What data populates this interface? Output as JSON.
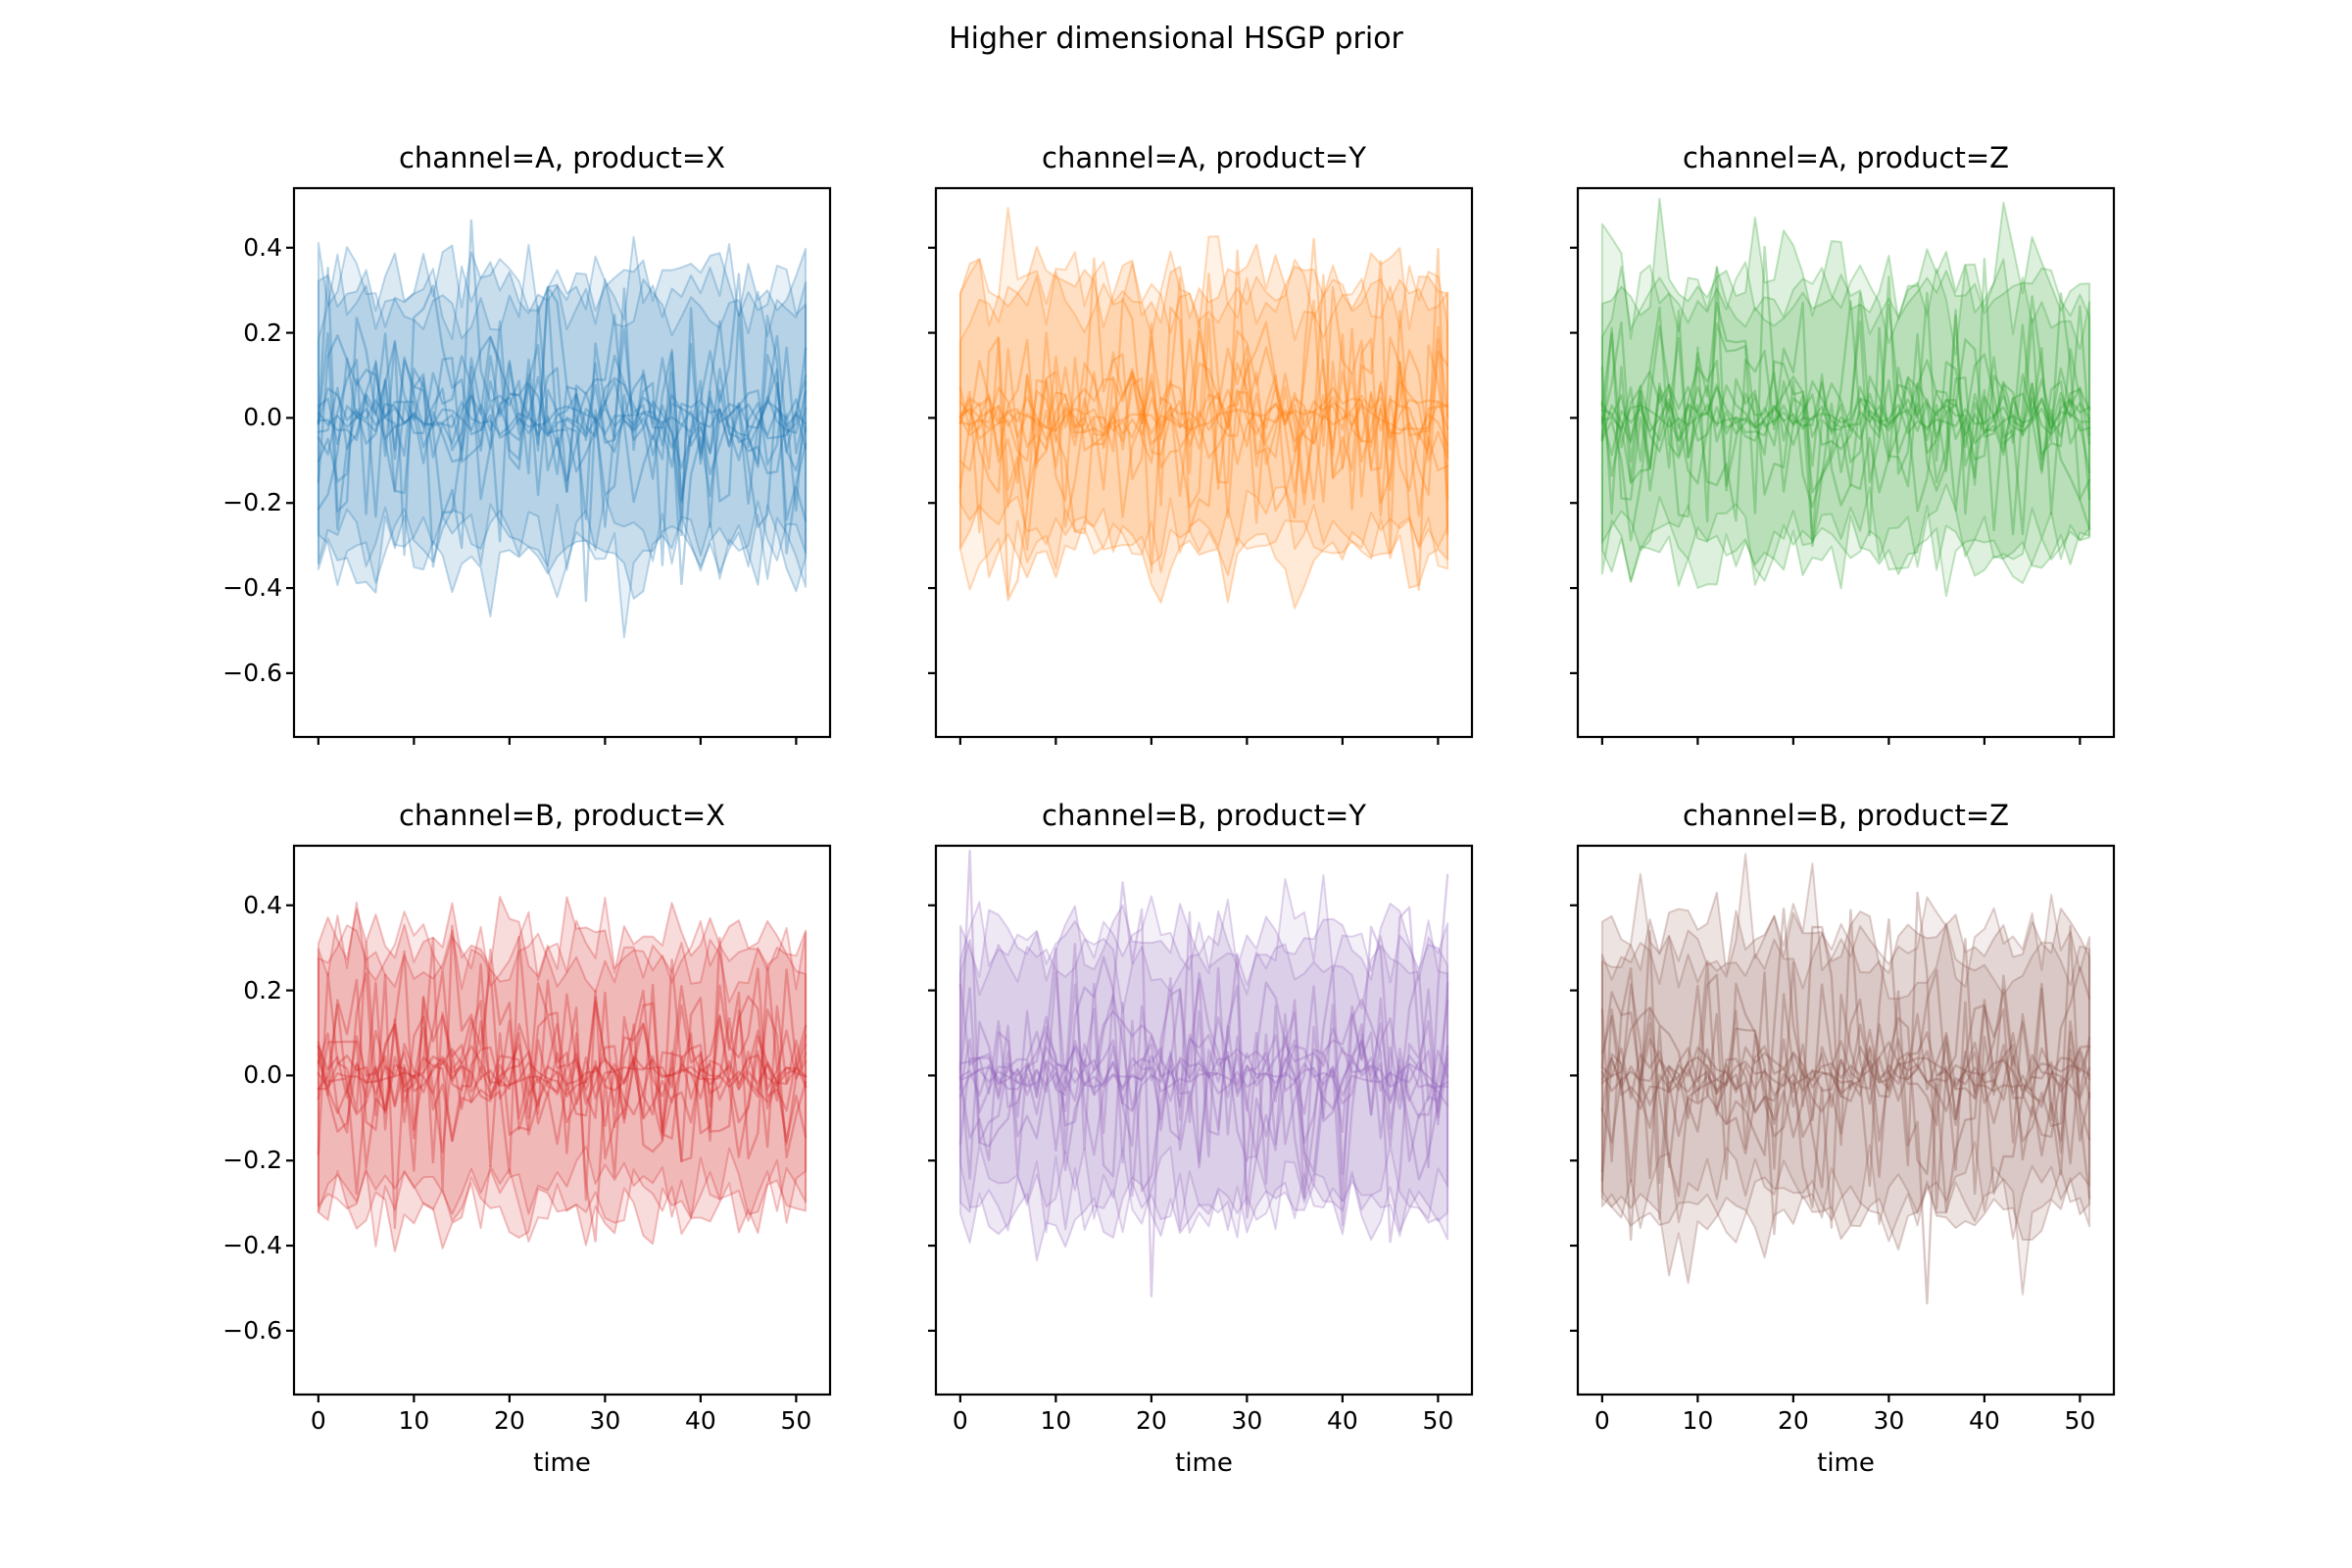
{
  "figure": {
    "suptitle": "Higher dimensional HSGP prior",
    "background": "#ffffff"
  },
  "chart_data": {
    "type": "line",
    "suptitle": "Higher dimensional HSGP prior",
    "layout": {
      "rows": 2,
      "cols": 3,
      "shared_x": true,
      "shared_y": true,
      "grid": false,
      "legend": false,
      "frame": "box"
    },
    "xlabel": "time",
    "ylabel": "",
    "xlim": [
      -2.55,
      53.55
    ],
    "ylim": [
      -0.75,
      0.54
    ],
    "x_ticks": [
      0,
      10,
      20,
      30,
      40,
      50
    ],
    "x_tick_labels": [
      "0",
      "10",
      "20",
      "30",
      "40",
      "50"
    ],
    "y_ticks": [
      0.4,
      0.2,
      0.0,
      -0.2,
      -0.4,
      -0.6
    ],
    "y_tick_labels": [
      "0.4",
      "0.2",
      "0.0",
      "−0.2",
      "−0.4",
      "−0.6"
    ],
    "x_data": {
      "start": 0,
      "end": 51,
      "n_points": 52
    },
    "series_description": "Each panel shows ~11 translucent HSGP prior sample paths oscillating around 0 (typical amplitude 0.05-0.2, extremes near ±0.55) drawn over translucent noisy uncertainty envelopes spanning roughly −0.33 to +0.33",
    "subplots": [
      {
        "row": 0,
        "col": 0,
        "channel": "A",
        "product": "X",
        "title": "channel=A, product=X",
        "color": "#1f77b4",
        "seed": 20
      },
      {
        "row": 0,
        "col": 1,
        "channel": "A",
        "product": "Y",
        "title": "channel=A, product=Y",
        "color": "#ff7f0e",
        "seed": 77
      },
      {
        "row": 0,
        "col": 2,
        "channel": "A",
        "product": "Z",
        "title": "channel=A, product=Z",
        "color": "#2ca02c",
        "seed": 131
      },
      {
        "row": 1,
        "col": 0,
        "channel": "B",
        "product": "X",
        "title": "channel=B, product=X",
        "color": "#d62728",
        "seed": 58
      },
      {
        "row": 1,
        "col": 1,
        "channel": "B",
        "product": "Y",
        "title": "channel=B, product=Y",
        "color": "#9467bd",
        "seed": 240
      },
      {
        "row": 1,
        "col": 2,
        "channel": "B",
        "product": "Z",
        "title": "channel=B, product=Z",
        "color": "#8c564b",
        "seed": 314
      }
    ]
  },
  "render": {
    "line_sigmas": [
      0.02,
      0.03,
      0.04,
      0.05,
      0.07,
      0.09,
      0.11,
      0.13,
      0.15,
      0.17,
      0.19
    ],
    "line_alpha": 0.33,
    "line_width": 2.4,
    "bands": [
      {
        "halfwidth": 0.32,
        "alpha": 0.16
      },
      {
        "halfwidth": 0.26,
        "alpha": 0.1
      },
      {
        "halfwidth": 0.3,
        "alpha": 0.1
      }
    ],
    "band_jitter_sd": 0.045,
    "band_spike_p": 0.05,
    "band_spike_mag": 0.14,
    "band_edge_alpha": 0.28,
    "spine_color": "#000000",
    "spine_width": 2.2,
    "tick_len": 8,
    "text_color": "#000000"
  }
}
